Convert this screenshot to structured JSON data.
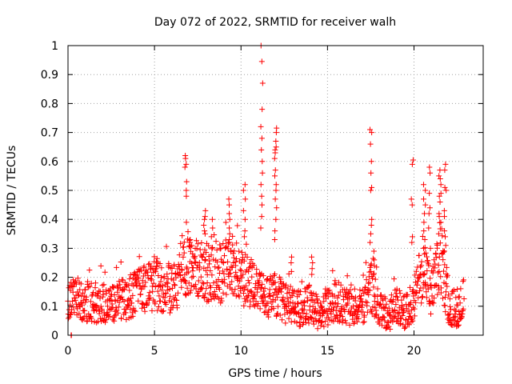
{
  "chart_data": {
    "type": "scatter",
    "title": "Day 072 of 2022, SRMTID for receiver walh",
    "xlabel": "GPS time / hours",
    "ylabel": "SRMTID / TECUs",
    "xlim": [
      0,
      24
    ],
    "ylim": [
      0,
      1
    ],
    "xticks": [
      0,
      5,
      10,
      15,
      20
    ],
    "xtick_labels": [
      "0",
      "5",
      "10",
      "15",
      "20"
    ],
    "yticks": [
      0,
      0.1,
      0.2,
      0.3,
      0.4,
      0.5,
      0.6,
      0.7,
      0.8,
      0.9,
      1.0
    ],
    "ytick_labels": [
      "0",
      "0.1",
      "0.2",
      "0.3",
      "0.4",
      "0.5",
      "0.6",
      "0.7",
      "0.8",
      "0.9",
      "1"
    ],
    "grid": true,
    "marker": "plus",
    "series": [
      {
        "name": "SRMTID",
        "color": "#ff0000",
        "baseline_profile": [
          [
            0.0,
            0.11
          ],
          [
            0.5,
            0.13
          ],
          [
            1.0,
            0.12
          ],
          [
            1.5,
            0.11
          ],
          [
            2.0,
            0.12
          ],
          [
            2.5,
            0.1
          ],
          [
            3.0,
            0.13
          ],
          [
            3.5,
            0.12
          ],
          [
            4.0,
            0.15
          ],
          [
            4.5,
            0.16
          ],
          [
            5.0,
            0.18
          ],
          [
            5.5,
            0.17
          ],
          [
            6.0,
            0.16
          ],
          [
            6.5,
            0.19
          ],
          [
            7.0,
            0.26
          ],
          [
            7.5,
            0.23
          ],
          [
            8.0,
            0.22
          ],
          [
            8.5,
            0.21
          ],
          [
            9.0,
            0.22
          ],
          [
            9.5,
            0.24
          ],
          [
            10.0,
            0.2
          ],
          [
            10.5,
            0.18
          ],
          [
            11.0,
            0.15
          ],
          [
            11.5,
            0.13
          ],
          [
            12.0,
            0.14
          ],
          [
            12.5,
            0.11
          ],
          [
            13.0,
            0.1
          ],
          [
            13.5,
            0.09
          ],
          [
            14.0,
            0.11
          ],
          [
            14.5,
            0.07
          ],
          [
            15.0,
            0.1
          ],
          [
            15.5,
            0.12
          ],
          [
            16.0,
            0.1
          ],
          [
            16.5,
            0.09
          ],
          [
            17.0,
            0.1
          ],
          [
            17.5,
            0.17
          ],
          [
            18.0,
            0.09
          ],
          [
            18.5,
            0.07
          ],
          [
            19.0,
            0.1
          ],
          [
            19.5,
            0.08
          ],
          [
            20.0,
            0.12
          ],
          [
            20.5,
            0.23
          ],
          [
            21.0,
            0.14
          ],
          [
            21.5,
            0.27
          ],
          [
            22.0,
            0.1
          ],
          [
            22.5,
            0.09
          ],
          [
            22.9,
            0.13
          ]
        ],
        "spikes": [
          {
            "x": 6.8,
            "values": [
              0.62,
              0.61,
              0.59,
              0.58,
              0.53,
              0.5,
              0.48,
              0.39
            ]
          },
          {
            "x": 7.1,
            "values": [
              0.33,
              0.32,
              0.31
            ]
          },
          {
            "x": 7.9,
            "values": [
              0.43,
              0.41,
              0.4,
              0.38,
              0.36,
              0.35
            ]
          },
          {
            "x": 8.3,
            "values": [
              0.4,
              0.37,
              0.34
            ]
          },
          {
            "x": 9.3,
            "values": [
              0.47,
              0.45,
              0.42,
              0.4,
              0.37,
              0.35,
              0.33
            ]
          },
          {
            "x": 10.2,
            "values": [
              0.52,
              0.5,
              0.47,
              0.43,
              0.4,
              0.36,
              0.34
            ]
          },
          {
            "x": 11.2,
            "values": [
              1.0,
              0.945,
              0.87,
              0.78,
              0.72,
              0.68,
              0.64,
              0.6,
              0.56,
              0.52,
              0.48,
              0.45,
              0.41,
              0.37
            ]
          },
          {
            "x": 12.0,
            "values": [
              0.715,
              0.7,
              0.67,
              0.65,
              0.64,
              0.63,
              0.61,
              0.57,
              0.55,
              0.52,
              0.5,
              0.47,
              0.44,
              0.4,
              0.36,
              0.33
            ]
          },
          {
            "x": 12.9,
            "values": [
              0.27,
              0.25,
              0.22
            ]
          },
          {
            "x": 14.1,
            "values": [
              0.27,
              0.25,
              0.23,
              0.21
            ]
          },
          {
            "x": 17.5,
            "values": [
              0.71,
              0.7,
              0.66,
              0.6,
              0.56,
              0.51,
              0.5,
              0.4,
              0.38,
              0.35,
              0.32
            ]
          },
          {
            "x": 17.7,
            "values": [
              0.29,
              0.26,
              0.24
            ]
          },
          {
            "x": 19.9,
            "values": [
              0.605,
              0.59,
              0.47,
              0.45,
              0.34,
              0.32
            ]
          },
          {
            "x": 20.6,
            "values": [
              0.52,
              0.5,
              0.47,
              0.45,
              0.42,
              0.39,
              0.36,
              0.33,
              0.3
            ]
          },
          {
            "x": 20.9,
            "values": [
              0.58,
              0.56,
              0.49,
              0.44,
              0.42,
              0.37,
              0.3
            ]
          },
          {
            "x": 21.5,
            "values": [
              0.57,
              0.55,
              0.54,
              0.52,
              0.49,
              0.48,
              0.46,
              0.42,
              0.41,
              0.39
            ]
          },
          {
            "x": 21.8,
            "values": [
              0.59,
              0.57,
              0.51,
              0.5,
              0.43,
              0.41,
              0.36,
              0.34,
              0.31,
              0.29
            ]
          },
          {
            "x": 0.2,
            "values": [
              0.0,
              0.0
            ]
          }
        ]
      }
    ]
  }
}
